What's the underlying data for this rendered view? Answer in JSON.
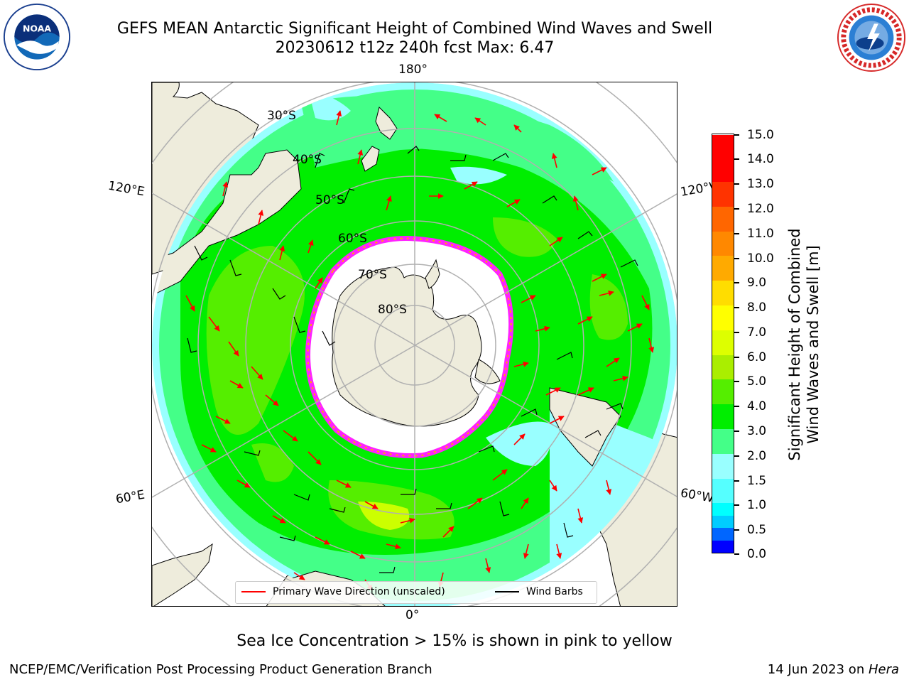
{
  "header": {
    "title_line1": "GEFS MEAN Antarctic Significant Height of Combined Wind Waves and Swell",
    "title_line2": "20230612 t12z 240h fcst   Max: 6.47"
  },
  "logos": {
    "left": "noaa-logo",
    "right": "nws-logo"
  },
  "map": {
    "projection": "south-polar-stereographic",
    "meridian_labels": {
      "top": "180°",
      "bottom": "0°",
      "upper_left": "120°E",
      "upper_right": "120°W",
      "lower_left": "60°E",
      "lower_right": "60°W"
    },
    "latitude_labels": [
      "30°S",
      "40°S",
      "50°S",
      "60°S",
      "70°S",
      "80°S"
    ],
    "colors": {
      "land": "#eeecdc",
      "sea_ice_white": "#ffffff",
      "ice_edge_magenta": "#ff22ff",
      "wave_arrow": "#ff0000",
      "wind_barb": "#000000",
      "gridline": "#b0b0b0"
    }
  },
  "colorbar": {
    "title_line1": "Significant Height of Combined",
    "title_line2": "Wind Waves and Swell [m]",
    "tick_labels": [
      "0.0",
      "0.5",
      "1.0",
      "1.5",
      "2.0",
      "2.5",
      "3.0",
      "4.0",
      "5.0",
      "6.0",
      "7.0",
      "8.0",
      "9.0",
      "10.0",
      "11.0",
      "12.0",
      "13.0",
      "14.0",
      "15.0"
    ],
    "colors": [
      "#0000ff",
      "#0066ff",
      "#00ccff",
      "#00ffff",
      "#55ffff",
      "#99ffff",
      "#44ff88",
      "#00ee00",
      "#55ee00",
      "#aaee00",
      "#ddff00",
      "#ffff00",
      "#ffdd00",
      "#ffaa00",
      "#ff8800",
      "#ff6600",
      "#ff3300",
      "#ff0000"
    ]
  },
  "legend": {
    "wave_label": "Primary Wave Direction (unscaled)",
    "wind_label": "Wind Barbs"
  },
  "caption": "Sea Ice Concentration > 15% is shown in pink to yellow",
  "footer": {
    "left": "NCEP/EMC/Verification Post Processing Product Generation Branch",
    "right_date": "14 Jun 2023 on ",
    "right_host": "Hera"
  }
}
